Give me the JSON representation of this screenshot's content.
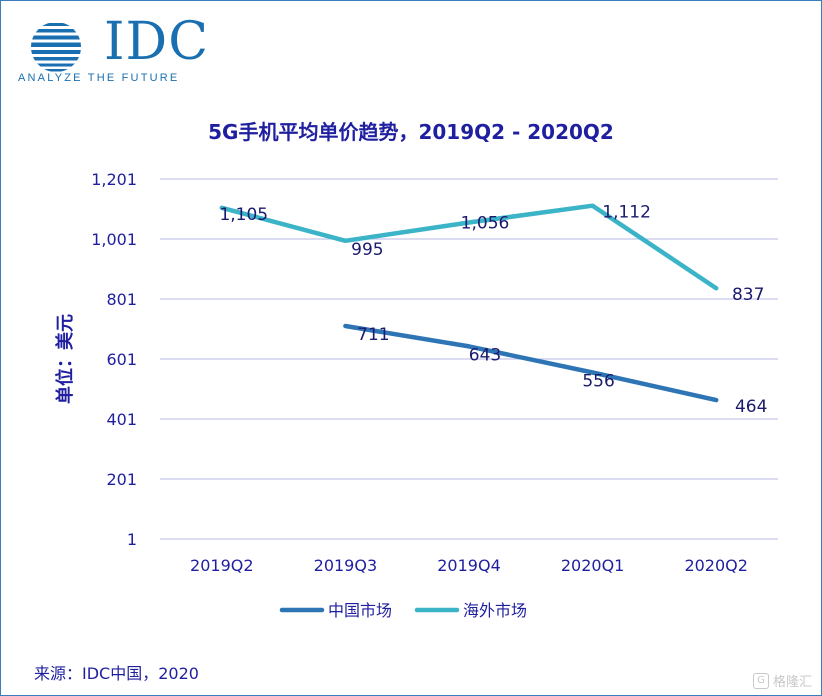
{
  "logo": {
    "name": "IDC",
    "tagline": "ANALYZE THE FUTURE"
  },
  "chart_data": {
    "type": "line",
    "title": "5G手机平均单价趋势，2019Q2 - 2020Q2",
    "ylabel": "单位：美元",
    "xlabel": "",
    "categories": [
      "2019Q2",
      "2019Q3",
      "2019Q4",
      "2020Q1",
      "2020Q2"
    ],
    "yticks": [
      "1",
      "201",
      "401",
      "601",
      "801",
      "1,001",
      "1,201"
    ],
    "ylim": [
      1,
      1201
    ],
    "grid": true,
    "legend_position": "bottom",
    "series": [
      {
        "name": "中国市场",
        "color": "#2e75b6",
        "values": [
          null,
          711,
          643,
          556,
          464
        ],
        "labels": [
          "",
          "711",
          "643",
          "556",
          "464"
        ]
      },
      {
        "name": "海外市场",
        "color": "#3cb4c8",
        "values": [
          1105,
          995,
          1056,
          1112,
          837
        ],
        "labels": [
          "1,105",
          "995",
          "1,056",
          "1,112",
          "837"
        ]
      }
    ]
  },
  "source": "来源：IDC中国，2020",
  "watermark": {
    "icon": "G",
    "text": "格隆汇"
  }
}
